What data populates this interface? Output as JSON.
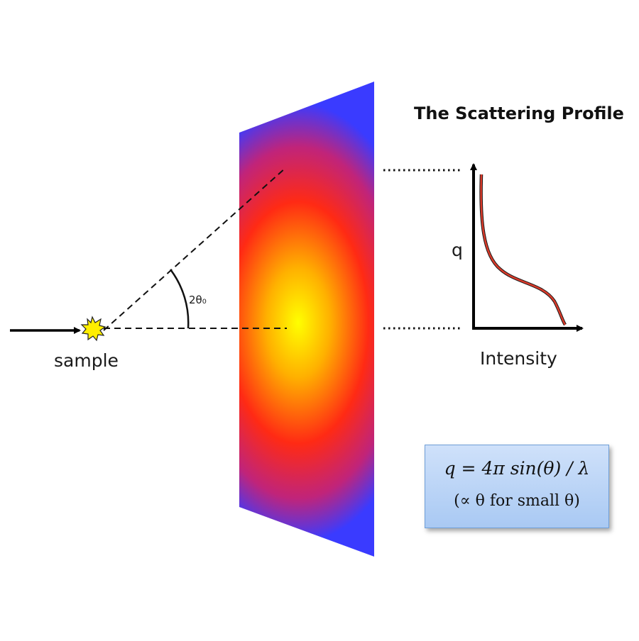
{
  "labels": {
    "sample": "sample",
    "angle": "2θ₀",
    "title": "The Scattering Profile",
    "q_axis": "q",
    "intensity_axis": "Intensity"
  },
  "formula": {
    "line1": "q = 4π sin(θ) / λ",
    "line2": "(∝ θ for small θ)"
  },
  "colors": {
    "detector_center": "#ffff00",
    "detector_mid": "#ff2a14",
    "detector_edge": "#3a3bff",
    "profile_curve": "#d93a2a",
    "formula_box": "#b9d3f6",
    "sample_star": "#ffee00"
  },
  "icons": {
    "sample": "starburst-icon",
    "beam": "arrow-right-icon"
  }
}
